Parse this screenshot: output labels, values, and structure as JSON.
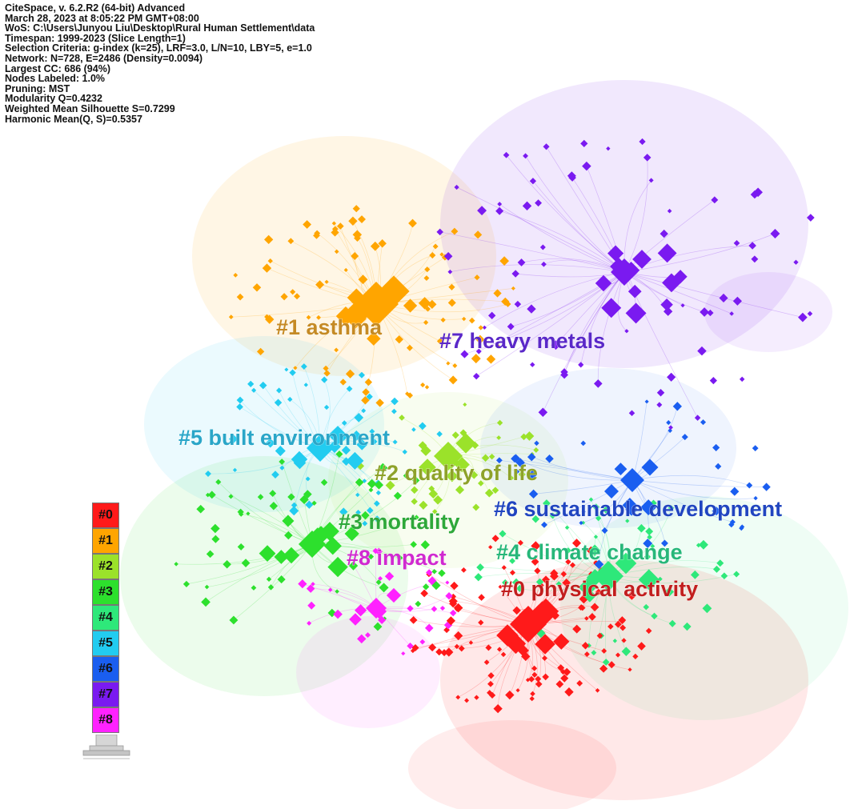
{
  "header_info": [
    "CiteSpace, v. 6.2.R2 (64-bit) Advanced",
    "March 28, 2023 at 8:05:22 PM GMT+08:00",
    "WoS: C:\\Users\\Junyou Liu\\Desktop\\Rural Human Settlement\\data",
    "Timespan: 1999-2023 (Slice Length=1)",
    "Selection Criteria: g-index (k=25), LRF=3.0, L/N=10, LBY=5, e=1.0",
    "Network: N=728, E=2486 (Density=0.0094)",
    "Largest CC: 686 (94%)",
    "Nodes Labeled: 1.0%",
    "Pruning: MST",
    "Modularity Q=0.4232",
    "Weighted Mean Silhouette S=0.7299",
    "Harmonic Mean(Q, S)=0.5357"
  ],
  "clusters": [
    {
      "id": "#0",
      "label": "#0 physical activity",
      "color": "#ff1a1a",
      "label_color": "#c21e1e"
    },
    {
      "id": "#1",
      "label": "#1 asthma",
      "color": "#ffa500",
      "label_color": "#c58a24"
    },
    {
      "id": "#2",
      "label": "#2 quality of life",
      "color": "#9be22a",
      "label_color": "#8ea22a"
    },
    {
      "id": "#3",
      "label": "#3 mortality",
      "color": "#2de02d",
      "label_color": "#2ea83a"
    },
    {
      "id": "#4",
      "label": "#4 climate change",
      "color": "#2ee87a",
      "label_color": "#27b77a"
    },
    {
      "id": "#5",
      "label": "#5 built environment",
      "color": "#22ccf0",
      "label_color": "#2aa6c8"
    },
    {
      "id": "#6",
      "label": "#6 sustainable development",
      "color": "#1a5ef0",
      "label_color": "#2145c0"
    },
    {
      "id": "#7",
      "label": "#7 heavy metals",
      "color": "#7a1af0",
      "label_color": "#5a28c8"
    },
    {
      "id": "#8",
      "label": "#8 impact",
      "color": "#ff22ff",
      "label_color": "#d02ad0"
    }
  ],
  "legend": {
    "items": [
      "#0",
      "#1",
      "#2",
      "#3",
      "#4",
      "#5",
      "#6",
      "#7",
      "#8"
    ],
    "colors": [
      "#ff1a1a",
      "#ffa500",
      "#9be22a",
      "#2de02d",
      "#2ee87a",
      "#22ccf0",
      "#1a5ef0",
      "#7a1af0",
      "#ff22ff"
    ]
  }
}
